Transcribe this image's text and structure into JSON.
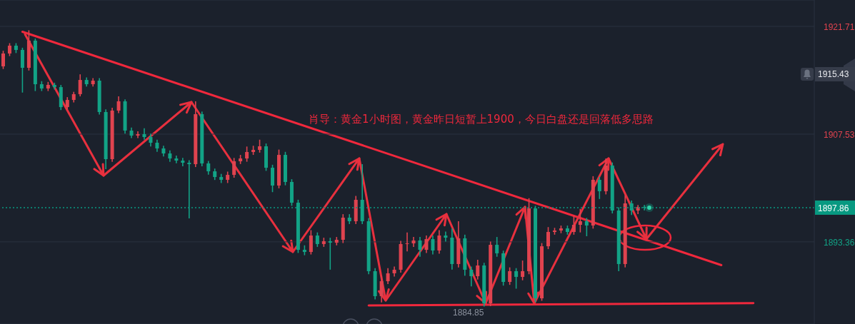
{
  "chart_data": {
    "type": "candlestick",
    "title": "肖导：黄金1小时图，黄金昨日短暂上1900，今日白盘还是回落低多思路",
    "categories": [
      null,
      null,
      null,
      null,
      null,
      null,
      null,
      null,
      null,
      null,
      null,
      null,
      null,
      null,
      null,
      null,
      null,
      null,
      null,
      null,
      null,
      null,
      null,
      null,
      null,
      null,
      null,
      null,
      null,
      null,
      null,
      null,
      null,
      null,
      null,
      null,
      null,
      null,
      null,
      null,
      null,
      null,
      null,
      null,
      null,
      null,
      null,
      null,
      null,
      null,
      null,
      null,
      null,
      null,
      null,
      null,
      null,
      null,
      null,
      null,
      null,
      null,
      null,
      null,
      null,
      null,
      null,
      null,
      null,
      null,
      null,
      null,
      null,
      null,
      null,
      null,
      null,
      null,
      null,
      null,
      null,
      null,
      null,
      null,
      null,
      null,
      null,
      null,
      null,
      null,
      null,
      null,
      null,
      null,
      null,
      null,
      null,
      null,
      null,
      null,
      null,
      null,
      null,
      null,
      null,
      null,
      null,
      null,
      null,
      null,
      null,
      null,
      null,
      null,
      null,
      null,
      null,
      null,
      null,
      null,
      null,
      null,
      null,
      null,
      null,
      null,
      null
    ],
    "ohlc": [
      [
        1916.45,
        1918.5,
        1916.1,
        1918.14
      ],
      [
        1918.14,
        1919.5,
        1917.8,
        1919.17
      ],
      [
        1919.17,
        1919.5,
        1918.2,
        1918.61
      ],
      [
        1918.61,
        1918.9,
        1913.0,
        1916.26
      ],
      [
        1916.26,
        1921.2,
        1915.9,
        1919.83
      ],
      [
        1919.83,
        1920.1,
        1913.2,
        1914.1
      ],
      [
        1914.1,
        1914.5,
        1913.2,
        1913.54
      ],
      [
        1913.54,
        1914.4,
        1913.2,
        1914.01
      ],
      [
        1914.01,
        1914.3,
        1913.4,
        1913.72
      ],
      [
        1913.72,
        1914.0,
        1910.7,
        1911.09
      ],
      [
        1911.09,
        1912.4,
        1910.8,
        1912.03
      ],
      [
        1912.03,
        1913.1,
        1911.7,
        1912.79
      ],
      [
        1912.79,
        1915.4,
        1912.5,
        1914.66
      ],
      [
        1914.66,
        1915.0,
        1913.8,
        1914.1
      ],
      [
        1914.1,
        1914.9,
        1913.8,
        1914.57
      ],
      [
        1914.57,
        1914.9,
        1910.1,
        1910.44
      ],
      [
        1910.44,
        1910.8,
        1902.93,
        1904.24
      ],
      [
        1904.24,
        1911.0,
        1903.9,
        1910.63
      ],
      [
        1910.63,
        1912.5,
        1910.3,
        1911.85
      ],
      [
        1911.85,
        1912.1,
        1907.6,
        1908.0
      ],
      [
        1908.0,
        1908.4,
        1907.0,
        1907.34
      ],
      [
        1907.34,
        1907.9,
        1907.0,
        1907.53
      ],
      [
        1907.53,
        1908.3,
        1906.8,
        1907.15
      ],
      [
        1907.15,
        1907.6,
        1905.9,
        1906.4
      ],
      [
        1906.4,
        1906.8,
        1905.2,
        1905.65
      ],
      [
        1905.65,
        1906.0,
        1904.6,
        1904.99
      ],
      [
        1904.99,
        1905.4,
        1903.9,
        1904.33
      ],
      [
        1904.33,
        1904.7,
        1903.7,
        1904.05
      ],
      [
        1904.05,
        1904.4,
        1903.3,
        1903.77
      ],
      [
        1903.77,
        1904.1,
        1896.45,
        1903.58
      ],
      [
        1903.58,
        1911.85,
        1903.2,
        1910.16
      ],
      [
        1910.16,
        1910.5,
        1903.3,
        1903.68
      ],
      [
        1903.68,
        1904.0,
        1902.2,
        1902.64
      ],
      [
        1902.64,
        1903.0,
        1901.5,
        1901.89
      ],
      [
        1901.89,
        1902.3,
        1901.1,
        1901.52
      ],
      [
        1901.52,
        1902.6,
        1901.1,
        1902.17
      ],
      [
        1902.17,
        1904.4,
        1901.8,
        1903.96
      ],
      [
        1903.96,
        1904.8,
        1903.6,
        1904.33
      ],
      [
        1904.33,
        1905.9,
        1903.9,
        1905.18
      ],
      [
        1905.18,
        1906.0,
        1904.8,
        1905.46
      ],
      [
        1905.46,
        1906.8,
        1905.1,
        1905.93
      ],
      [
        1905.93,
        1906.3,
        1902.7,
        1903.11
      ],
      [
        1903.11,
        1903.5,
        1899.9,
        1900.77
      ],
      [
        1900.77,
        1905.5,
        1900.4,
        1904.8
      ],
      [
        1904.8,
        1905.2,
        1900.8,
        1901.24
      ],
      [
        1901.24,
        1901.6,
        1898.1,
        1898.51
      ],
      [
        1898.51,
        1898.9,
        1891.9,
        1892.31
      ],
      [
        1892.31,
        1892.9,
        1891.6,
        1892.03
      ],
      [
        1892.03,
        1894.9,
        1891.7,
        1894.19
      ],
      [
        1894.19,
        1894.6,
        1892.7,
        1893.07
      ],
      [
        1893.07,
        1893.9,
        1892.7,
        1893.44
      ],
      [
        1893.44,
        1893.9,
        1889.7,
        1893.25
      ],
      [
        1893.25,
        1894.0,
        1892.9,
        1893.63
      ],
      [
        1893.63,
        1897.0,
        1893.2,
        1896.54
      ],
      [
        1896.54,
        1897.0,
        1895.7,
        1896.07
      ],
      [
        1896.07,
        1899.4,
        1895.7,
        1898.89
      ],
      [
        1898.89,
        1903.58,
        1895.7,
        1896.07
      ],
      [
        1896.07,
        1896.5,
        1889.1,
        1889.5
      ],
      [
        1889.5,
        1889.9,
        1885.8,
        1886.21
      ],
      [
        1886.21,
        1888.9,
        1885.4,
        1888.18
      ],
      [
        1888.18,
        1889.9,
        1887.8,
        1889.22
      ],
      [
        1889.22,
        1890.1,
        1888.8,
        1889.69
      ],
      [
        1889.69,
        1893.5,
        1889.3,
        1893.07
      ],
      [
        1893.07,
        1894.6,
        1892.1,
        1893.16
      ],
      [
        1893.16,
        1894.0,
        1892.7,
        1893.54
      ],
      [
        1893.54,
        1894.0,
        1891.4,
        1892.31
      ],
      [
        1892.31,
        1894.2,
        1891.9,
        1893.72
      ],
      [
        1893.72,
        1894.2,
        1891.7,
        1892.22
      ],
      [
        1892.22,
        1894.9,
        1891.8,
        1894.19
      ],
      [
        1894.19,
        1894.7,
        1893.4,
        1893.91
      ],
      [
        1893.91,
        1895.1,
        1889.7,
        1890.44
      ],
      [
        1890.44,
        1896.07,
        1890.0,
        1893.82
      ],
      [
        1893.82,
        1894.3,
        1888.9,
        1889.69
      ],
      [
        1889.69,
        1890.1,
        1887.5,
        1888.84
      ],
      [
        1888.84,
        1891.0,
        1888.4,
        1890.25
      ],
      [
        1890.25,
        1890.6,
        1884.85,
        1885.27
      ],
      [
        1885.27,
        1893.4,
        1884.9,
        1892.97
      ],
      [
        1892.97,
        1894.0,
        1891.4,
        1891.85
      ],
      [
        1891.85,
        1892.2,
        1887.6,
        1888.09
      ],
      [
        1888.09,
        1890.0,
        1887.7,
        1889.5
      ],
      [
        1889.5,
        1889.9,
        1887.2,
        1888.75
      ],
      [
        1888.75,
        1890.9,
        1888.3,
        1889.5
      ],
      [
        1889.5,
        1899.1,
        1889.1,
        1897.76
      ],
      [
        1897.76,
        1898.1,
        1885.4,
        1885.93
      ],
      [
        1885.93,
        1893.2,
        1885.6,
        1892.78
      ],
      [
        1892.78,
        1895.3,
        1892.4,
        1894.66
      ],
      [
        1894.66,
        1895.2,
        1894.3,
        1894.85
      ],
      [
        1894.85,
        1895.5,
        1894.5,
        1895.13
      ],
      [
        1895.13,
        1895.5,
        1894.3,
        1894.66
      ],
      [
        1894.66,
        1896.8,
        1894.3,
        1895.6
      ],
      [
        1895.6,
        1897.7,
        1894.6,
        1896.07
      ],
      [
        1896.07,
        1896.5,
        1894.1,
        1895.51
      ],
      [
        1895.51,
        1902.0,
        1895.1,
        1901.52
      ],
      [
        1901.52,
        1901.9,
        1899.0,
        1900.02
      ],
      [
        1900.02,
        1904.33,
        1899.6,
        1903.4
      ],
      [
        1903.4,
        1903.8,
        1897.1,
        1897.48
      ],
      [
        1897.48,
        1897.9,
        1889.5,
        1890.44
      ],
      [
        1890.44,
        1899.5,
        1890.0,
        1898.42
      ],
      [
        1898.42,
        1898.8,
        1896.9,
        1897.48
      ],
      [
        1897.48,
        1898.2,
        1897.0,
        1897.95
      ],
      [
        1897.95,
        1898.2,
        1897.5,
        1897.86
      ],
      null,
      null,
      null,
      null,
      null,
      null,
      null,
      null,
      null,
      null,
      null,
      null,
      null,
      null,
      null,
      null,
      null,
      null,
      null,
      null,
      null,
      null,
      null,
      null,
      null,
      null
    ],
    "ylim": [
      1882.55,
      1925.18
    ],
    "yticks": [
      1921.71,
      1907.53,
      1893.36
    ],
    "grid": "y",
    "tick_labels": "y",
    "ref_lines": [
      {
        "axis": "y",
        "value": 1897.86,
        "label": "1897.86",
        "color": "#089981",
        "line_style": "dotted"
      }
    ],
    "series": [
      {
        "type": "line",
        "color": "#f0283c",
        "values": [
          null,
          null,
          null,
          1921.0,
          null,
          null,
          null,
          null,
          null,
          null,
          null,
          null,
          null,
          null,
          null,
          null,
          null,
          null,
          null,
          null,
          null,
          null,
          null,
          null,
          null,
          null,
          null,
          null,
          null,
          null,
          null,
          null,
          null,
          null,
          null,
          null,
          null,
          null,
          null,
          null,
          null,
          null,
          null,
          null,
          null,
          null,
          null,
          null,
          null,
          null,
          null,
          null,
          null,
          null,
          null,
          null,
          null,
          null,
          null,
          null,
          null,
          null,
          null,
          null,
          null,
          null,
          null,
          null,
          null,
          null,
          null,
          null,
          null,
          null,
          null,
          null,
          null,
          null,
          null,
          null,
          null,
          null,
          null,
          null,
          null,
          null,
          null,
          null,
          null,
          null,
          null,
          null,
          null,
          null,
          null,
          null,
          null,
          null,
          null,
          null,
          null,
          null,
          null,
          null,
          null,
          null,
          null,
          null,
          null,
          null,
          null,
          null,
          1890.3,
          null,
          null,
          null,
          null,
          null,
          null,
          null,
          null,
          null,
          null,
          null,
          null,
          null,
          null
        ]
      },
      {
        "type": "line",
        "color": "#f0283c",
        "values": [
          null,
          null,
          null,
          null,
          null,
          null,
          null,
          null,
          null,
          null,
          null,
          null,
          null,
          null,
          null,
          null,
          null,
          null,
          null,
          null,
          null,
          null,
          null,
          null,
          null,
          null,
          null,
          null,
          null,
          null,
          null,
          null,
          null,
          null,
          null,
          null,
          null,
          null,
          null,
          null,
          null,
          null,
          null,
          null,
          null,
          null,
          null,
          null,
          null,
          null,
          null,
          null,
          null,
          null,
          null,
          null,
          null,
          1885.0,
          null,
          null,
          null,
          null,
          null,
          null,
          null,
          null,
          null,
          null,
          null,
          null,
          null,
          null,
          null,
          null,
          null,
          null,
          null,
          null,
          null,
          null,
          null,
          null,
          null,
          null,
          null,
          null,
          null,
          null,
          null,
          null,
          null,
          null,
          null,
          null,
          null,
          null,
          null,
          null,
          null,
          null,
          null,
          null,
          null,
          null,
          null,
          null,
          null,
          null,
          null,
          null,
          null,
          null,
          null,
          null,
          null,
          null,
          null,
          1885.3,
          null,
          null,
          null,
          null,
          null,
          null,
          null,
          null,
          null
        ]
      }
    ],
    "annotations": [
      "1884.85",
      "1915.43"
    ]
  }
}
